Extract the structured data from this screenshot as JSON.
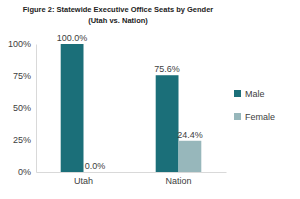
{
  "chart_data": {
    "type": "bar",
    "title": "Figure 2: Statewide Executive Office Seats by Gender",
    "subtitle": "(Utah vs. Nation)",
    "categories": [
      "Utah",
      "Nation"
    ],
    "series": [
      {
        "name": "Male",
        "color": "#1b6f79",
        "values": [
          100,
          75.6
        ],
        "value_labels": [
          "100.0%",
          "75.6%"
        ]
      },
      {
        "name": "Female",
        "color": "#97b7bb",
        "values": [
          0,
          24.4
        ],
        "value_labels": [
          "0.0%",
          "24.4%"
        ]
      }
    ],
    "ylim": [
      0,
      100
    ],
    "yticks": [
      {
        "value": 0,
        "label": "0%"
      },
      {
        "value": 25,
        "label": "25%"
      },
      {
        "value": 50,
        "label": "50%"
      },
      {
        "value": 75,
        "label": "75%"
      },
      {
        "value": 100,
        "label": "100%"
      }
    ],
    "grid": false,
    "legend": "right",
    "data_labels": true
  }
}
